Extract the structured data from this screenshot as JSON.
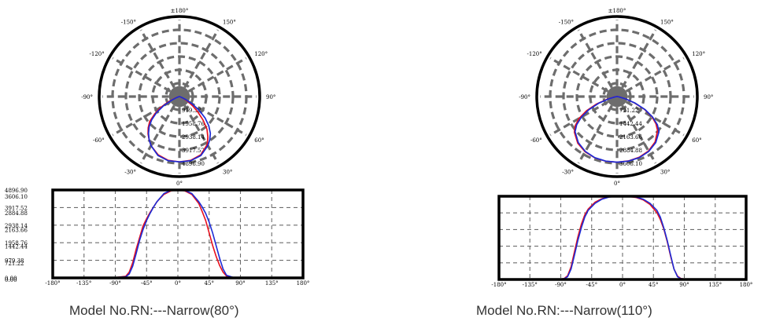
{
  "colors": {
    "frame": "#000000",
    "grid": "#6d6d6d",
    "series_red": "#e8101e",
    "series_blue": "#1c2bd6",
    "caption": "#333333"
  },
  "captions": {
    "left": "Model No.RN:---Narrow(80°)",
    "right": "Model No.RN:---Narrow(110°)"
  },
  "chart_data": [
    {
      "type": "polar",
      "angle_labels": [
        "±180°",
        "150°",
        "120°",
        "90°",
        "60°",
        "30°",
        "0°",
        "-30°",
        "-60°",
        "-90°",
        "-120°",
        "-150°"
      ],
      "radial_labels": [
        "4896.90",
        "3917.52",
        "2938.14",
        "1958.76",
        "979.38"
      ],
      "rmax": 6000,
      "series": [
        {
          "color": "red",
          "points": [
            [
              -80,
              20
            ],
            [
              -75,
              90
            ],
            [
              -70,
              320
            ],
            [
              -65,
              850
            ],
            [
              -60,
              1600
            ],
            [
              -55,
              2250
            ],
            [
              -50,
              2900
            ],
            [
              -45,
              3300
            ],
            [
              -40,
              3650
            ],
            [
              -35,
              3950
            ],
            [
              -30,
              4250
            ],
            [
              -20,
              4650
            ],
            [
              -10,
              4850
            ],
            [
              0,
              4897
            ],
            [
              10,
              4850
            ],
            [
              20,
              4650
            ],
            [
              30,
              4150
            ],
            [
              35,
              3700
            ],
            [
              40,
              3200
            ],
            [
              45,
              2500
            ],
            [
              50,
              1800
            ],
            [
              55,
              1200
            ],
            [
              60,
              700
            ],
            [
              65,
              320
            ],
            [
              70,
              100
            ],
            [
              80,
              20
            ]
          ]
        },
        {
          "color": "blue",
          "points": [
            [
              -80,
              20
            ],
            [
              -75,
              60
            ],
            [
              -70,
              220
            ],
            [
              -65,
              650
            ],
            [
              -60,
              1350
            ],
            [
              -55,
              2100
            ],
            [
              -50,
              2700
            ],
            [
              -45,
              3200
            ],
            [
              -40,
              3600
            ],
            [
              -35,
              3950
            ],
            [
              -30,
              4250
            ],
            [
              -20,
              4700
            ],
            [
              -10,
              4880
            ],
            [
              0,
              4897
            ],
            [
              10,
              4880
            ],
            [
              20,
              4700
            ],
            [
              30,
              4250
            ],
            [
              35,
              3950
            ],
            [
              40,
              3600
            ],
            [
              45,
              3100
            ],
            [
              50,
              2500
            ],
            [
              55,
              1800
            ],
            [
              60,
              1100
            ],
            [
              65,
              500
            ],
            [
              70,
              150
            ],
            [
              80,
              20
            ]
          ]
        }
      ]
    },
    {
      "type": "line",
      "x_ticks": [
        "-180°",
        "-135°",
        "-90°",
        "-45°",
        "0°",
        "45°",
        "90°",
        "135°",
        "180°"
      ],
      "y_ticks": [
        "4896.90",
        "3917.52",
        "2938.14",
        "1958.76",
        "979.38",
        "0.00"
      ],
      "xlim": [
        -180,
        180
      ],
      "ylim": [
        0,
        4896.9
      ],
      "grid": true,
      "series": [
        {
          "color": "red",
          "points": [
            [
              -180,
              20
            ],
            [
              -90,
              20
            ],
            [
              -75,
              90
            ],
            [
              -70,
              320
            ],
            [
              -65,
              850
            ],
            [
              -60,
              1600
            ],
            [
              -55,
              2250
            ],
            [
              -50,
              2900
            ],
            [
              -45,
              3300
            ],
            [
              -40,
              3650
            ],
            [
              -35,
              3950
            ],
            [
              -30,
              4250
            ],
            [
              -20,
              4650
            ],
            [
              -10,
              4850
            ],
            [
              0,
              4897
            ],
            [
              10,
              4850
            ],
            [
              20,
              4650
            ],
            [
              30,
              4150
            ],
            [
              35,
              3700
            ],
            [
              40,
              3200
            ],
            [
              45,
              2500
            ],
            [
              50,
              1800
            ],
            [
              55,
              1200
            ],
            [
              60,
              700
            ],
            [
              65,
              320
            ],
            [
              70,
              100
            ],
            [
              80,
              20
            ],
            [
              180,
              20
            ]
          ]
        },
        {
          "color": "blue",
          "points": [
            [
              -180,
              20
            ],
            [
              -90,
              20
            ],
            [
              -75,
              60
            ],
            [
              -70,
              220
            ],
            [
              -65,
              650
            ],
            [
              -60,
              1350
            ],
            [
              -55,
              2100
            ],
            [
              -50,
              2700
            ],
            [
              -45,
              3200
            ],
            [
              -40,
              3600
            ],
            [
              -35,
              3950
            ],
            [
              -30,
              4250
            ],
            [
              -20,
              4700
            ],
            [
              -10,
              4880
            ],
            [
              0,
              4897
            ],
            [
              10,
              4880
            ],
            [
              20,
              4700
            ],
            [
              30,
              4250
            ],
            [
              35,
              3950
            ],
            [
              40,
              3600
            ],
            [
              45,
              3100
            ],
            [
              50,
              2500
            ],
            [
              55,
              1800
            ],
            [
              60,
              1100
            ],
            [
              65,
              500
            ],
            [
              70,
              150
            ],
            [
              80,
              20
            ],
            [
              180,
              20
            ]
          ]
        }
      ]
    },
    {
      "type": "polar",
      "angle_labels": [
        "±180°",
        "150°",
        "120°",
        "90°",
        "60°",
        "30°",
        "0°",
        "-30°",
        "-60°",
        "-90°",
        "-120°",
        "-150°"
      ],
      "radial_labels": [
        "3606.10",
        "2884.88",
        "2163.66",
        "1442.44",
        "721.22"
      ],
      "rmax": 4400,
      "series": [
        {
          "color": "red",
          "points": [
            [
              -90,
              20
            ],
            [
              -85,
              40
            ],
            [
              -80,
              160
            ],
            [
              -75,
              550
            ],
            [
              -70,
              1200
            ],
            [
              -65,
              1850
            ],
            [
              -60,
              2400
            ],
            [
              -55,
              2800
            ],
            [
              -50,
              3050
            ],
            [
              -40,
              3350
            ],
            [
              -30,
              3500
            ],
            [
              -20,
              3580
            ],
            [
              -10,
              3606
            ],
            [
              0,
              3606
            ],
            [
              10,
              3590
            ],
            [
              20,
              3550
            ],
            [
              30,
              3450
            ],
            [
              40,
              3250
            ],
            [
              50,
              2900
            ],
            [
              55,
              2600
            ],
            [
              60,
              2200
            ],
            [
              65,
              1650
            ],
            [
              70,
              1000
            ],
            [
              75,
              450
            ],
            [
              80,
              150
            ],
            [
              85,
              40
            ],
            [
              90,
              20
            ]
          ]
        },
        {
          "color": "blue",
          "points": [
            [
              -90,
              20
            ],
            [
              -85,
              30
            ],
            [
              -80,
              120
            ],
            [
              -75,
              450
            ],
            [
              -70,
              1050
            ],
            [
              -65,
              1700
            ],
            [
              -60,
              2250
            ],
            [
              -55,
              2700
            ],
            [
              -50,
              3000
            ],
            [
              -40,
              3300
            ],
            [
              -30,
              3480
            ],
            [
              -20,
              3570
            ],
            [
              -10,
              3600
            ],
            [
              0,
              3606
            ],
            [
              10,
              3600
            ],
            [
              20,
              3570
            ],
            [
              30,
              3480
            ],
            [
              40,
              3300
            ],
            [
              50,
              3000
            ],
            [
              55,
              2700
            ],
            [
              60,
              2250
            ],
            [
              65,
              1700
            ],
            [
              70,
              1050
            ],
            [
              75,
              450
            ],
            [
              80,
              120
            ],
            [
              85,
              30
            ],
            [
              90,
              20
            ]
          ]
        }
      ]
    },
    {
      "type": "line",
      "x_ticks": [
        "-180°",
        "-135°",
        "-90°",
        "-45°",
        "0°",
        "45°",
        "90°",
        "135°",
        "180°"
      ],
      "y_ticks": [
        "3606.10",
        "2884.88",
        "2163.66",
        "1442.44",
        "721.22",
        "0.00"
      ],
      "xlim": [
        -180,
        180
      ],
      "ylim": [
        0,
        3606.1
      ],
      "grid": true,
      "series": [
        {
          "color": "red",
          "points": [
            [
              -180,
              20
            ],
            [
              -90,
              20
            ],
            [
              -85,
              40
            ],
            [
              -80,
              160
            ],
            [
              -75,
              550
            ],
            [
              -70,
              1200
            ],
            [
              -65,
              1850
            ],
            [
              -60,
              2400
            ],
            [
              -55,
              2800
            ],
            [
              -50,
              3050
            ],
            [
              -40,
              3350
            ],
            [
              -30,
              3500
            ],
            [
              -20,
              3580
            ],
            [
              -10,
              3606
            ],
            [
              0,
              3606
            ],
            [
              10,
              3590
            ],
            [
              20,
              3550
            ],
            [
              30,
              3450
            ],
            [
              40,
              3250
            ],
            [
              50,
              2900
            ],
            [
              55,
              2600
            ],
            [
              60,
              2200
            ],
            [
              65,
              1650
            ],
            [
              70,
              1000
            ],
            [
              75,
              450
            ],
            [
              80,
              150
            ],
            [
              85,
              40
            ],
            [
              90,
              20
            ],
            [
              180,
              20
            ]
          ]
        },
        {
          "color": "blue",
          "points": [
            [
              -180,
              20
            ],
            [
              -90,
              20
            ],
            [
              -85,
              30
            ],
            [
              -80,
              120
            ],
            [
              -75,
              450
            ],
            [
              -70,
              1050
            ],
            [
              -65,
              1700
            ],
            [
              -60,
              2250
            ],
            [
              -55,
              2700
            ],
            [
              -50,
              3000
            ],
            [
              -40,
              3300
            ],
            [
              -30,
              3480
            ],
            [
              -20,
              3570
            ],
            [
              -10,
              3600
            ],
            [
              0,
              3606
            ],
            [
              10,
              3600
            ],
            [
              20,
              3570
            ],
            [
              30,
              3480
            ],
            [
              40,
              3300
            ],
            [
              50,
              3000
            ],
            [
              55,
              2700
            ],
            [
              60,
              2250
            ],
            [
              65,
              1700
            ],
            [
              70,
              1050
            ],
            [
              75,
              450
            ],
            [
              80,
              120
            ],
            [
              85,
              30
            ],
            [
              90,
              20
            ],
            [
              180,
              20
            ]
          ]
        }
      ]
    }
  ]
}
